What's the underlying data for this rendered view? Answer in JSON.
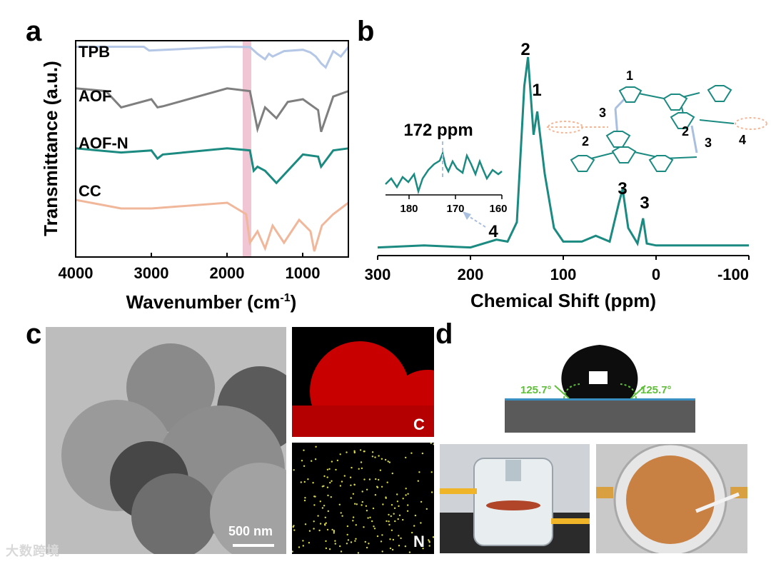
{
  "panels": {
    "a": "a",
    "b": "b",
    "c": "c",
    "d": "d"
  },
  "panel_a": {
    "ylabel": "Transmittance (a.u.)",
    "xlabel_main": "Wavenumber (cm",
    "xlabel_sup": "-1",
    "xlabel_end": ")",
    "xticks": [
      "4000",
      "3000",
      "2000",
      "1000"
    ],
    "series_labels": [
      "TPB",
      "AOF",
      "AOF-N",
      "CC"
    ],
    "colors": {
      "TPB": "#b4c7e6",
      "AOF": "#7f7f7f",
      "AOF-N": "#1b8a80",
      "CC": "#f1b79b",
      "highlight": "#f0c6d4"
    }
  },
  "panel_b": {
    "xlabel": "Chemical Shift (ppm)",
    "xticks": [
      "300",
      "200",
      "100",
      "0",
      "-100"
    ],
    "peak_labels": [
      "2",
      "1",
      "3",
      "3",
      "4"
    ],
    "inset_title": "172 ppm",
    "inset_ticks": [
      "180",
      "170",
      "160"
    ],
    "structure_labels": [
      "1",
      "2",
      "3",
      "2",
      "3",
      "4"
    ],
    "color": "#1b8a80"
  },
  "panel_c": {
    "scale_bar": "500 nm",
    "map_c_label": "C",
    "map_n_label": "N"
  },
  "panel_d": {
    "angle_left": "125.7°",
    "angle_right": "125.7°"
  },
  "watermark": "大数跨境",
  "chart_data": [
    {
      "type": "line",
      "title": "",
      "xlabel": "Wavenumber (cm-1)",
      "ylabel": "Transmittance (a.u.)",
      "xlim": [
        4000,
        400
      ],
      "series": [
        {
          "name": "TPB",
          "x": [
            4000,
            3100,
            3030,
            2000,
            1700,
            1600,
            1500,
            1450,
            1400,
            1250,
            1000,
            900,
            830,
            760,
            700,
            600,
            500,
            400
          ],
          "values": [
            0.96,
            0.96,
            0.82,
            0.96,
            0.95,
            0.7,
            0.5,
            0.7,
            0.6,
            0.8,
            0.85,
            0.75,
            0.6,
            0.35,
            0.2,
            0.8,
            0.6,
            0.95
          ]
        },
        {
          "name": "AOF",
          "x": [
            4000,
            3600,
            3400,
            3000,
            2920,
            2850,
            2000,
            1700,
            1600,
            1500,
            1350,
            1200,
            1000,
            800,
            760,
            600,
            400
          ],
          "values": [
            0.95,
            0.9,
            0.6,
            0.75,
            0.6,
            0.62,
            0.95,
            0.9,
            0.2,
            0.6,
            0.4,
            0.7,
            0.75,
            0.55,
            0.15,
            0.8,
            0.9
          ]
        },
        {
          "name": "AOF-N",
          "x": [
            4000,
            3400,
            3000,
            2920,
            2850,
            2000,
            1700,
            1650,
            1600,
            1500,
            1350,
            1000,
            800,
            760,
            600,
            400
          ],
          "values": [
            0.95,
            0.85,
            0.9,
            0.7,
            0.8,
            0.95,
            0.9,
            0.4,
            0.5,
            0.4,
            0.1,
            0.8,
            0.75,
            0.5,
            0.9,
            0.95
          ]
        },
        {
          "name": "CC",
          "x": [
            4000,
            3400,
            3000,
            2000,
            1750,
            1700,
            1600,
            1500,
            1400,
            1250,
            1050,
            900,
            850,
            750,
            600,
            400
          ],
          "values": [
            0.95,
            0.8,
            0.8,
            0.9,
            0.7,
            0.2,
            0.4,
            0.1,
            0.5,
            0.2,
            0.6,
            0.4,
            0.05,
            0.5,
            0.7,
            0.9
          ]
        }
      ]
    },
    {
      "type": "line",
      "title": "",
      "xlabel": "Chemical Shift (ppm)",
      "ylabel": "",
      "xlim": [
        300,
        -100
      ],
      "series": [
        {
          "name": "AOF-N",
          "x": [
            300,
            250,
            200,
            172,
            160,
            150,
            142,
            138,
            132,
            128,
            120,
            110,
            100,
            80,
            65,
            50,
            40,
            36,
            30,
            20,
            14,
            10,
            0,
            -50,
            -100
          ],
          "values": [
            0.02,
            0.03,
            0.02,
            0.06,
            0.05,
            0.15,
            0.85,
            1.0,
            0.6,
            0.72,
            0.4,
            0.12,
            0.05,
            0.05,
            0.08,
            0.05,
            0.25,
            0.32,
            0.12,
            0.04,
            0.17,
            0.04,
            0.03,
            0.03,
            0.03
          ]
        }
      ]
    }
  ]
}
